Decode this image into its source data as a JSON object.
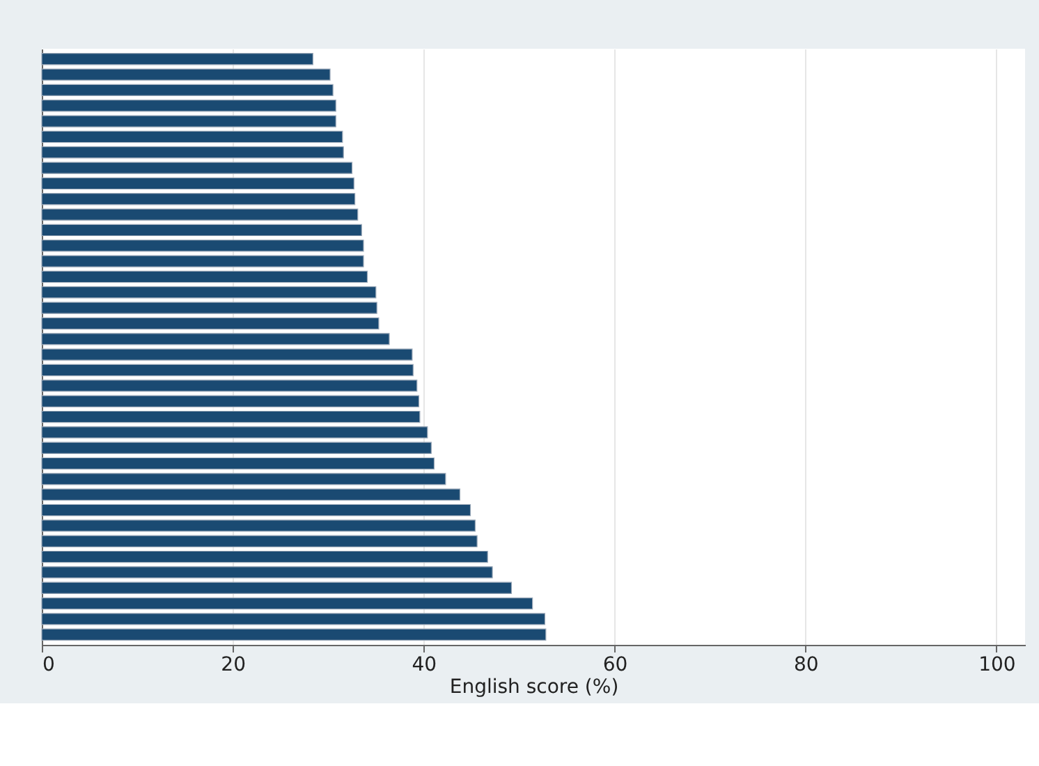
{
  "chart_data": {
    "type": "bar",
    "orientation": "horizontal",
    "xlabel": "English score (%)",
    "categories": [
      null,
      null,
      null,
      null,
      null,
      null,
      null,
      null,
      null,
      null,
      null,
      null,
      null,
      null,
      null,
      null,
      null,
      null,
      null,
      null,
      null,
      null,
      null,
      null,
      null,
      null,
      null,
      null,
      null,
      null,
      null,
      null,
      null,
      null,
      null,
      null,
      null,
      null
    ],
    "values": [
      28.4,
      30.2,
      30.5,
      30.8,
      30.8,
      31.5,
      31.6,
      32.5,
      32.7,
      32.8,
      33.1,
      33.5,
      33.7,
      33.7,
      34.1,
      35.0,
      35.1,
      35.3,
      36.4,
      38.8,
      38.9,
      39.3,
      39.5,
      39.6,
      40.4,
      40.8,
      41.1,
      42.3,
      43.8,
      44.9,
      45.4,
      45.6,
      46.7,
      47.2,
      49.2,
      51.4,
      52.7,
      52.8
    ],
    "color": "#1a4a72",
    "xlim": [
      0,
      103
    ],
    "xticks": [
      0,
      20,
      40,
      60,
      80,
      100
    ],
    "grid": "x",
    "tick_labels": "x"
  }
}
